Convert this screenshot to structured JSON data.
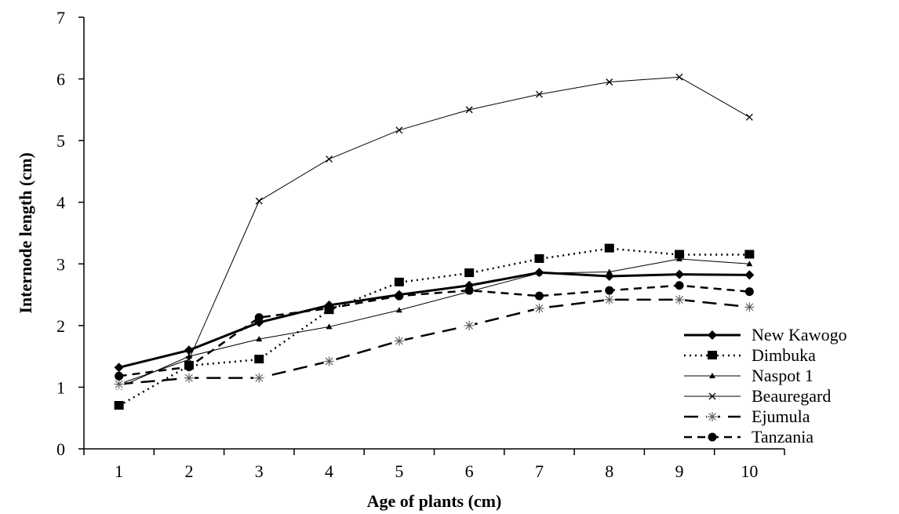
{
  "chart_data": {
    "type": "line",
    "title": "",
    "xlabel": "Age of  plants (cm)",
    "ylabel": "Internode length (cm)",
    "x": [
      1,
      2,
      3,
      4,
      5,
      6,
      7,
      8,
      9,
      10
    ],
    "xlim": [
      0.5,
      10.5
    ],
    "ylim": [
      0,
      7
    ],
    "y_ticks": [
      0,
      1,
      2,
      3,
      4,
      5,
      6,
      7
    ],
    "grid": false,
    "legend_position": "bottom-right",
    "series": [
      {
        "name": "New Kawogo",
        "marker": "diamond",
        "line": "solid-thick",
        "values": [
          1.32,
          1.6,
          2.05,
          2.33,
          2.5,
          2.65,
          2.86,
          2.8,
          2.83,
          2.82
        ]
      },
      {
        "name": "Dimbuka",
        "marker": "square",
        "line": "dotted",
        "values": [
          0.7,
          1.35,
          1.45,
          2.25,
          2.7,
          2.85,
          3.08,
          3.25,
          3.15,
          3.15
        ]
      },
      {
        "name": "Naspot 1",
        "marker": "triangle",
        "line": "solid-thin",
        "values": [
          1.0,
          1.5,
          1.78,
          1.98,
          2.25,
          2.55,
          2.85,
          2.87,
          3.08,
          3.0
        ]
      },
      {
        "name": "Beauregard",
        "marker": "x",
        "line": "solid-thin",
        "values": [
          1.05,
          1.45,
          4.02,
          4.7,
          5.17,
          5.5,
          5.75,
          5.95,
          6.03,
          5.38
        ]
      },
      {
        "name": "Ejumula",
        "marker": "asterisk",
        "line": "long-dash",
        "values": [
          1.05,
          1.15,
          1.15,
          1.42,
          1.75,
          2.0,
          2.28,
          2.42,
          2.42,
          2.3
        ]
      },
      {
        "name": "Tanzania",
        "marker": "circle",
        "line": "dashed",
        "values": [
          1.18,
          1.33,
          2.13,
          2.28,
          2.48,
          2.57,
          2.48,
          2.57,
          2.65,
          2.55
        ]
      }
    ]
  }
}
